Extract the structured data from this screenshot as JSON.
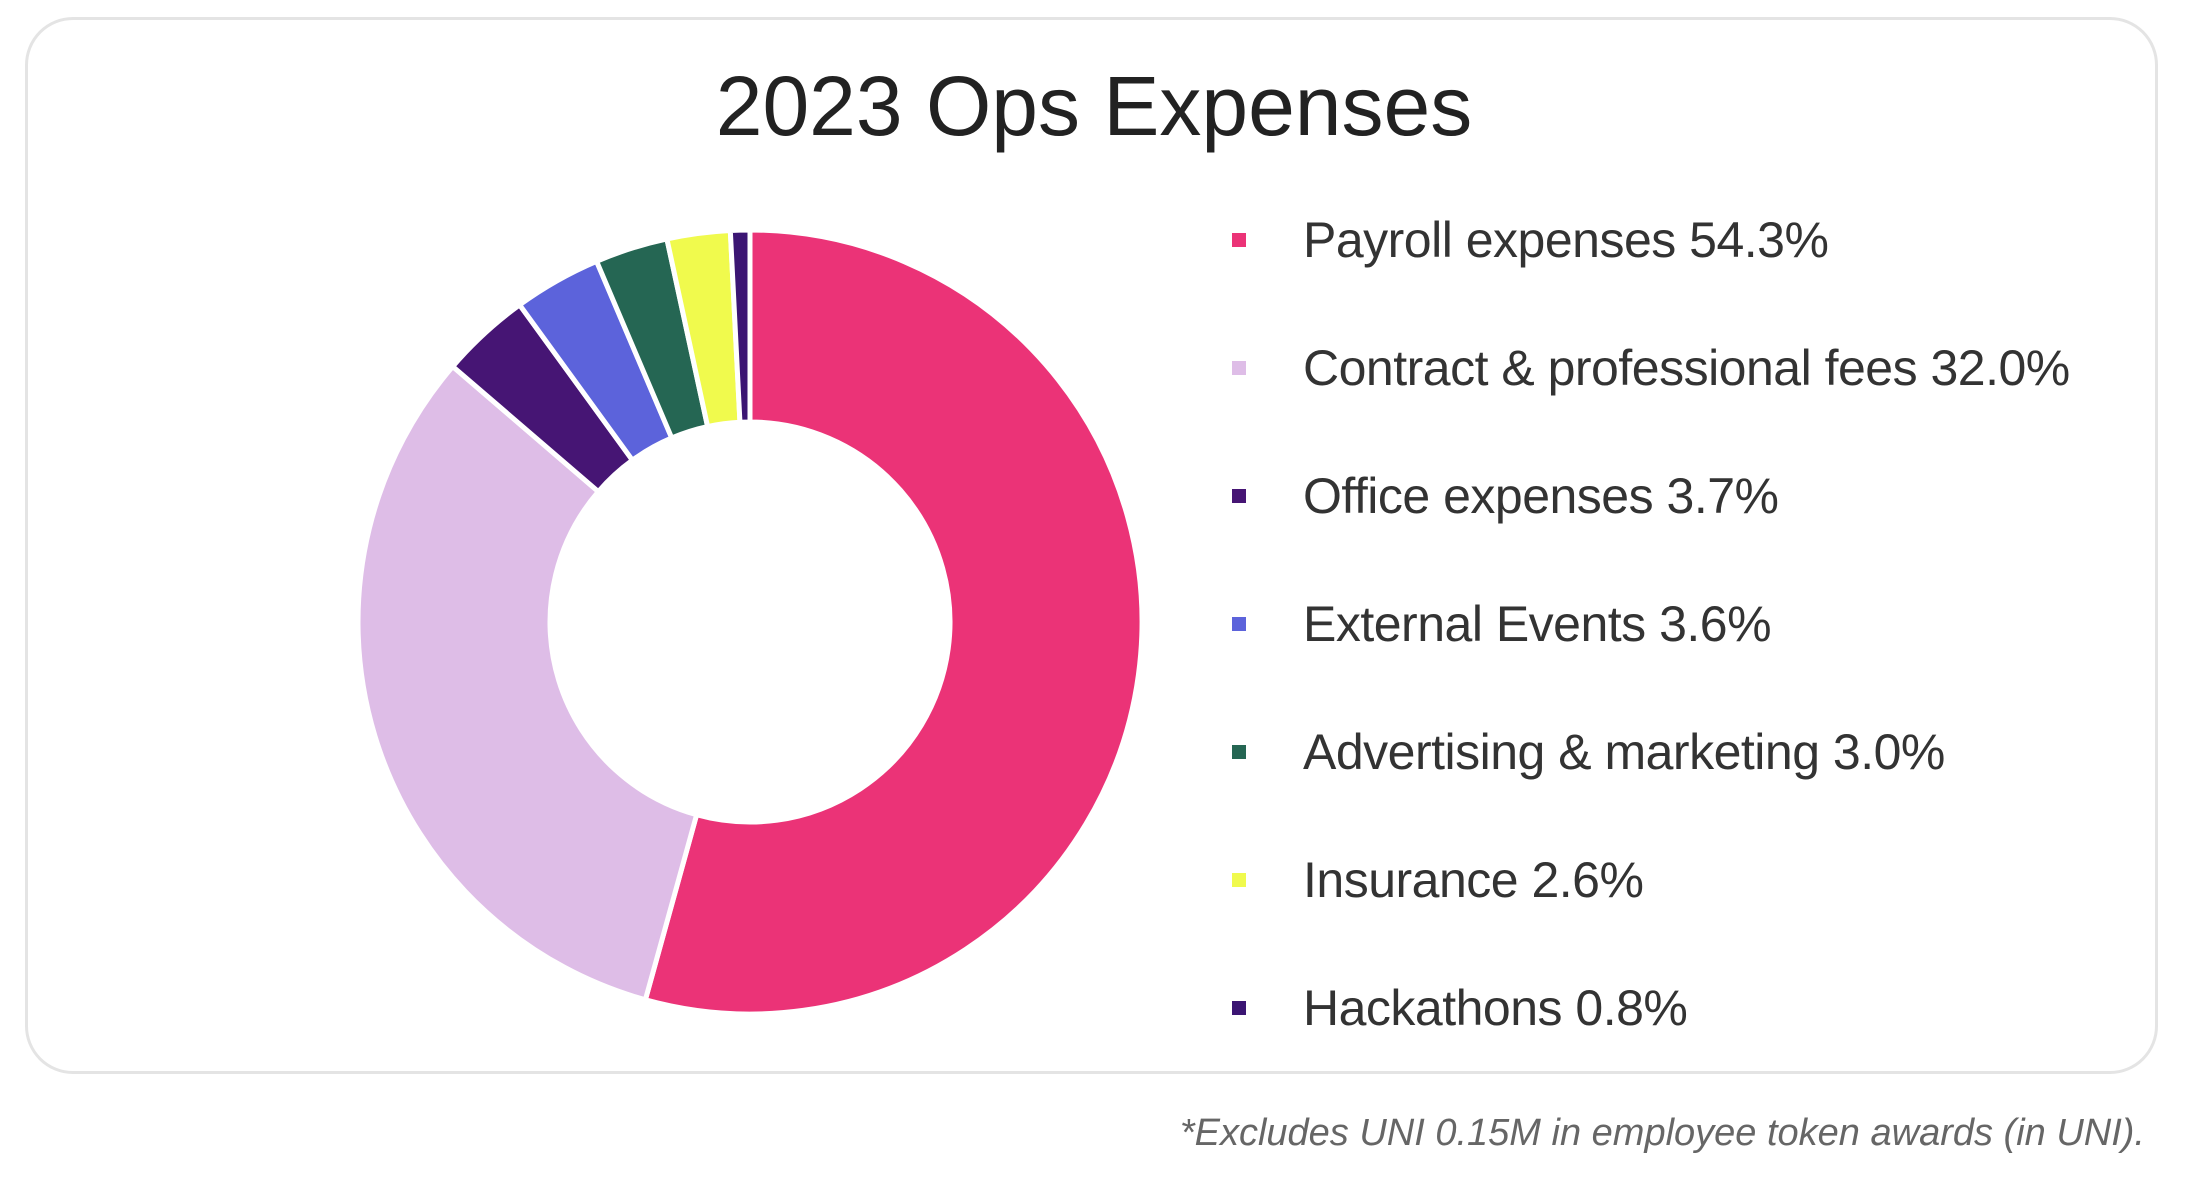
{
  "chart_data": {
    "type": "pie",
    "style": "donut",
    "title": "2023 Ops Expenses",
    "legend_position": "right",
    "slices": [
      {
        "label": "Payroll expenses 54.3%",
        "value": 54.3,
        "color": "#EB3377"
      },
      {
        "label": "Contract & professional fees 32.0%",
        "value": 32.0,
        "color": "#DEBDE7"
      },
      {
        "label": "Office expenses 3.7%",
        "value": 3.7,
        "color": "#461574"
      },
      {
        "label": "External Events 3.6%",
        "value": 3.6,
        "color": "#5C63DB"
      },
      {
        "label": "Advertising & marketing 3.0%",
        "value": 3.0,
        "color": "#256653"
      },
      {
        "label": "Insurance 2.6%",
        "value": 2.6,
        "color": "#F0FA4D"
      },
      {
        "label": "Hackathons 0.8%",
        "value": 0.8,
        "color": "#3B1573"
      }
    ],
    "footnote": "*Excludes UNI 0.15M in employee token awards (in UNI)."
  }
}
